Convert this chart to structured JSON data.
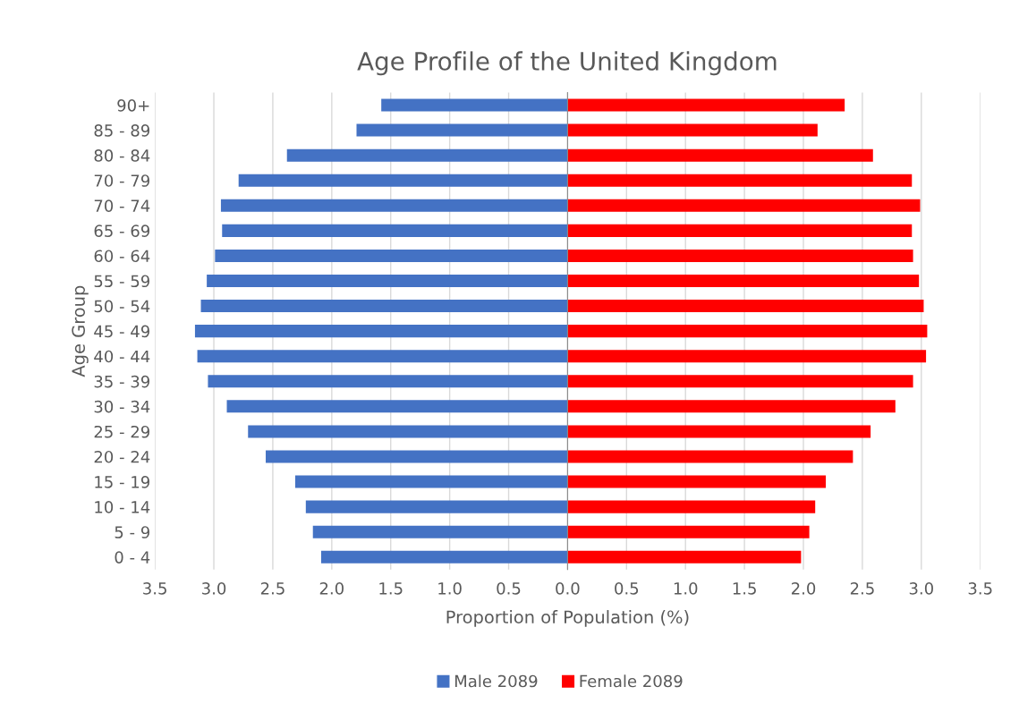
{
  "chart_data": {
    "type": "bar",
    "orientation": "horizontal",
    "title": "Age Profile of the United Kingdom",
    "xlabel": "Proportion of Population (%)",
    "ylabel": "Age Group",
    "categories": [
      "90+",
      "85 - 89",
      "80 - 84",
      "70 - 79",
      "70 - 74",
      "65 - 69",
      "60 - 64",
      "55 - 59",
      "50 - 54",
      "45 - 49",
      "40 - 44",
      "35 - 39",
      "30 - 34",
      "25 - 29",
      "20 - 24",
      "15 - 19",
      "10 - 14",
      "5 - 9",
      "0 - 4"
    ],
    "series": [
      {
        "name": "Male 2089",
        "color": "#4472c4",
        "values": [
          -1.58,
          -1.79,
          -2.38,
          -2.79,
          -2.94,
          -2.93,
          -2.99,
          -3.06,
          -3.11,
          -3.16,
          -3.14,
          -3.05,
          -2.89,
          -2.71,
          -2.56,
          -2.31,
          -2.22,
          -2.16,
          -2.09
        ]
      },
      {
        "name": "Female 2089",
        "color": "#ff0000",
        "values": [
          2.35,
          2.12,
          2.59,
          2.92,
          2.99,
          2.92,
          2.93,
          2.98,
          3.02,
          3.05,
          3.04,
          2.93,
          2.78,
          2.57,
          2.42,
          2.19,
          2.1,
          2.05,
          1.98
        ]
      }
    ],
    "xlim": [
      -3.5,
      3.5
    ],
    "xticks": [
      {
        "value": -3.5,
        "label": "3.5"
      },
      {
        "value": -3.0,
        "label": "3.0"
      },
      {
        "value": -2.5,
        "label": "2.5"
      },
      {
        "value": -2.0,
        "label": "2.0"
      },
      {
        "value": -1.5,
        "label": "1.5"
      },
      {
        "value": -1.0,
        "label": "1.0"
      },
      {
        "value": -0.5,
        "label": "0.5"
      },
      {
        "value": 0,
        "label": "0.0"
      },
      {
        "value": 0.5,
        "label": "0.5"
      },
      {
        "value": 1.0,
        "label": "1.0"
      },
      {
        "value": 1.5,
        "label": "1.5"
      },
      {
        "value": 2.0,
        "label": "2.0"
      },
      {
        "value": 2.5,
        "label": "2.5"
      },
      {
        "value": 3.0,
        "label": "3.0"
      },
      {
        "value": 3.5,
        "label": "3.5"
      }
    ],
    "stacked": true,
    "grid": "x",
    "legend": "bottom"
  }
}
